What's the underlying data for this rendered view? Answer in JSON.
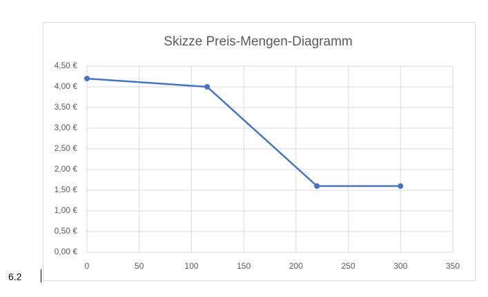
{
  "page_label": "6.2",
  "chart_data": {
    "type": "line",
    "title": "Skizze Preis-Mengen-Diagramm",
    "x": [
      0,
      115,
      220,
      300
    ],
    "values": [
      4.2,
      4.0,
      1.6,
      1.6
    ],
    "color": "#4472c4",
    "xlim": [
      0,
      350
    ],
    "xticks": [
      0,
      50,
      100,
      150,
      200,
      250,
      300,
      350
    ],
    "ylim": [
      0,
      4.5
    ],
    "yticks": [
      {
        "value": 0,
        "label": "0,00 €"
      },
      {
        "value": 0.5,
        "label": "0,50 €"
      },
      {
        "value": 1,
        "label": "1,00 €"
      },
      {
        "value": 1.5,
        "label": "1,50 €"
      },
      {
        "value": 2,
        "label": "2,00 €"
      },
      {
        "value": 2.5,
        "label": "2,50 €"
      },
      {
        "value": 3,
        "label": "3,00 €"
      },
      {
        "value": 3.5,
        "label": "3,50 €"
      },
      {
        "value": 4,
        "label": "4,00 €"
      },
      {
        "value": 4.5,
        "label": "4,50 €"
      }
    ],
    "grid": true,
    "markers": true
  }
}
